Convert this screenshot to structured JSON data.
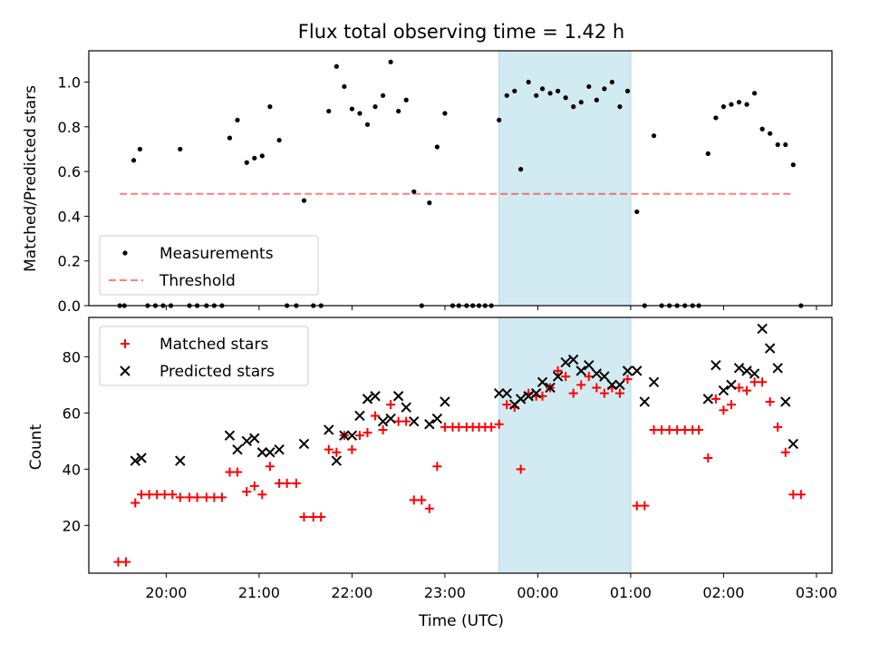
{
  "chart_data": [
    {
      "type": "scatter",
      "title": "Flux total observing time = 1.42 h",
      "xlabel": "",
      "ylabel": "Matched/Predicted stars",
      "ylim": [
        0,
        1.14
      ],
      "yticks": [
        "0.0",
        "0.2",
        "0.4",
        "0.6",
        "0.8",
        "1.0"
      ],
      "x_axis": "time",
      "x_range": [
        "19:10",
        "03:10"
      ],
      "highlight": {
        "from": "23:35",
        "to": "01:00",
        "color": "#add8e6"
      },
      "legend_position": "lower left",
      "legend": [
        "Measurements",
        "Threshold"
      ],
      "threshold": {
        "name": "Threshold",
        "value": 0.5,
        "from": "19:30",
        "to": "02:45",
        "color": "#ff0000",
        "style": "dashed"
      },
      "series": [
        {
          "name": "Measurements",
          "color": "#000000",
          "marker": "dot",
          "points": [
            [
              "19:30",
              0.0
            ],
            [
              "19:33",
              0.0
            ],
            [
              "19:39",
              0.65
            ],
            [
              "19:43",
              0.7
            ],
            [
              "19:48",
              0.0
            ],
            [
              "19:53",
              0.0
            ],
            [
              "19:58",
              0.0
            ],
            [
              "20:03",
              0.0
            ],
            [
              "20:09",
              0.7
            ],
            [
              "20:15",
              0.0
            ],
            [
              "20:20",
              0.0
            ],
            [
              "20:26",
              0.0
            ],
            [
              "20:31",
              0.0
            ],
            [
              "20:36",
              0.0
            ],
            [
              "20:41",
              0.75
            ],
            [
              "20:46",
              0.83
            ],
            [
              "20:52",
              0.64
            ],
            [
              "20:57",
              0.66
            ],
            [
              "21:02",
              0.67
            ],
            [
              "21:07",
              0.89
            ],
            [
              "21:13",
              0.74
            ],
            [
              "21:18",
              0.0
            ],
            [
              "21:24",
              0.0
            ],
            [
              "21:29",
              0.47
            ],
            [
              "21:35",
              0.0
            ],
            [
              "21:40",
              0.0
            ],
            [
              "21:45",
              0.87
            ],
            [
              "21:50",
              1.07
            ],
            [
              "21:55",
              0.98
            ],
            [
              "22:00",
              0.88
            ],
            [
              "22:05",
              0.86
            ],
            [
              "22:10",
              0.81
            ],
            [
              "22:15",
              0.89
            ],
            [
              "22:20",
              0.94
            ],
            [
              "22:25",
              1.09
            ],
            [
              "22:30",
              0.87
            ],
            [
              "22:35",
              0.92
            ],
            [
              "22:40",
              0.51
            ],
            [
              "22:45",
              0.0
            ],
            [
              "22:50",
              0.46
            ],
            [
              "22:55",
              0.71
            ],
            [
              "23:00",
              0.86
            ],
            [
              "23:05",
              0.0
            ],
            [
              "23:09",
              0.0
            ],
            [
              "23:14",
              0.0
            ],
            [
              "23:18",
              0.0
            ],
            [
              "23:22",
              0.0
            ],
            [
              "23:26",
              0.0
            ],
            [
              "23:30",
              0.0
            ],
            [
              "23:35",
              0.83
            ],
            [
              "23:40",
              0.94
            ],
            [
              "23:45",
              0.96
            ],
            [
              "23:49",
              0.61
            ],
            [
              "23:54",
              1.0
            ],
            [
              "23:59",
              0.94
            ],
            [
              "00:03",
              0.97
            ],
            [
              "00:08",
              0.95
            ],
            [
              "00:13",
              0.96
            ],
            [
              "00:18",
              0.93
            ],
            [
              "00:23",
              0.89
            ],
            [
              "00:28",
              0.91
            ],
            [
              "00:33",
              0.98
            ],
            [
              "00:38",
              0.92
            ],
            [
              "00:43",
              0.97
            ],
            [
              "00:48",
              1.0
            ],
            [
              "00:53",
              0.89
            ],
            [
              "00:58",
              0.96
            ],
            [
              "01:04",
              0.42
            ],
            [
              "01:09",
              0.0
            ],
            [
              "01:15",
              0.76
            ],
            [
              "01:20",
              0.0
            ],
            [
              "01:25",
              0.0
            ],
            [
              "01:30",
              0.0
            ],
            [
              "01:35",
              0.0
            ],
            [
              "01:40",
              0.0
            ],
            [
              "01:44",
              0.0
            ],
            [
              "01:50",
              0.68
            ],
            [
              "01:55",
              0.84
            ],
            [
              "02:00",
              0.89
            ],
            [
              "02:05",
              0.9
            ],
            [
              "02:10",
              0.91
            ],
            [
              "02:15",
              0.9
            ],
            [
              "02:20",
              0.95
            ],
            [
              "02:25",
              0.79
            ],
            [
              "02:30",
              0.77
            ],
            [
              "02:35",
              0.72
            ],
            [
              "02:40",
              0.72
            ],
            [
              "02:45",
              0.63
            ],
            [
              "02:50",
              0.0
            ]
          ]
        }
      ]
    },
    {
      "type": "scatter",
      "title": "",
      "xlabel": "Time (UTC)",
      "ylabel": "Count",
      "ylim": [
        3,
        94
      ],
      "yticks": [
        "20",
        "40",
        "60",
        "80"
      ],
      "xticks": [
        "20:00",
        "21:00",
        "22:00",
        "23:00",
        "00:00",
        "01:00",
        "02:00",
        "03:00"
      ],
      "x_axis": "time",
      "x_range": [
        "19:10",
        "03:10"
      ],
      "highlight": {
        "from": "23:35",
        "to": "01:00",
        "color": "#add8e6"
      },
      "legend_position": "upper left",
      "legend": [
        "Matched stars",
        "Predicted stars"
      ],
      "series": [
        {
          "name": "Matched stars",
          "color": "#ff0000",
          "marker": "plus",
          "points": [
            [
              "19:29",
              7
            ],
            [
              "19:34",
              7
            ],
            [
              "19:40",
              28
            ],
            [
              "19:44",
              31
            ],
            [
              "19:49",
              31
            ],
            [
              "19:54",
              31
            ],
            [
              "19:59",
              31
            ],
            [
              "20:04",
              31
            ],
            [
              "20:09",
              30
            ],
            [
              "20:15",
              30
            ],
            [
              "20:20",
              30
            ],
            [
              "20:26",
              30
            ],
            [
              "20:31",
              30
            ],
            [
              "20:36",
              30
            ],
            [
              "20:41",
              39
            ],
            [
              "20:46",
              39
            ],
            [
              "20:52",
              32
            ],
            [
              "20:57",
              34
            ],
            [
              "21:02",
              31
            ],
            [
              "21:07",
              41
            ],
            [
              "21:13",
              35
            ],
            [
              "21:18",
              35
            ],
            [
              "21:24",
              35
            ],
            [
              "21:29",
              23
            ],
            [
              "21:35",
              23
            ],
            [
              "21:40",
              23
            ],
            [
              "21:45",
              47
            ],
            [
              "21:50",
              46
            ],
            [
              "21:55",
              52
            ],
            [
              "22:00",
              47
            ],
            [
              "22:05",
              52
            ],
            [
              "22:10",
              53
            ],
            [
              "22:15",
              59
            ],
            [
              "22:20",
              54
            ],
            [
              "22:25",
              63
            ],
            [
              "22:30",
              57
            ],
            [
              "22:35",
              57
            ],
            [
              "22:40",
              29
            ],
            [
              "22:45",
              29
            ],
            [
              "22:50",
              26
            ],
            [
              "22:55",
              41
            ],
            [
              "23:00",
              55
            ],
            [
              "23:05",
              55
            ],
            [
              "23:09",
              55
            ],
            [
              "23:14",
              55
            ],
            [
              "23:18",
              55
            ],
            [
              "23:22",
              55
            ],
            [
              "23:26",
              55
            ],
            [
              "23:30",
              55
            ],
            [
              "23:35",
              56
            ],
            [
              "23:40",
              63
            ],
            [
              "23:45",
              62
            ],
            [
              "23:49",
              40
            ],
            [
              "23:54",
              67
            ],
            [
              "23:59",
              66
            ],
            [
              "00:03",
              66
            ],
            [
              "00:08",
              69
            ],
            [
              "00:13",
              75
            ],
            [
              "00:18",
              73
            ],
            [
              "00:23",
              67
            ],
            [
              "00:28",
              70
            ],
            [
              "00:33",
              73
            ],
            [
              "00:38",
              69
            ],
            [
              "00:43",
              67
            ],
            [
              "00:48",
              69
            ],
            [
              "00:53",
              67
            ],
            [
              "00:58",
              72
            ],
            [
              "01:04",
              27
            ],
            [
              "01:09",
              27
            ],
            [
              "01:15",
              54
            ],
            [
              "01:20",
              54
            ],
            [
              "01:25",
              54
            ],
            [
              "01:30",
              54
            ],
            [
              "01:35",
              54
            ],
            [
              "01:40",
              54
            ],
            [
              "01:44",
              54
            ],
            [
              "01:50",
              44
            ],
            [
              "01:55",
              65
            ],
            [
              "02:00",
              61
            ],
            [
              "02:05",
              63
            ],
            [
              "02:10",
              69
            ],
            [
              "02:15",
              68
            ],
            [
              "02:20",
              71
            ],
            [
              "02:25",
              71
            ],
            [
              "02:30",
              64
            ],
            [
              "02:35",
              55
            ],
            [
              "02:40",
              46
            ],
            [
              "02:45",
              31
            ],
            [
              "02:50",
              31
            ]
          ]
        },
        {
          "name": "Predicted stars",
          "color": "#000000",
          "marker": "x",
          "points": [
            [
              "19:40",
              43
            ],
            [
              "19:44",
              44
            ],
            [
              "20:09",
              43
            ],
            [
              "20:41",
              52
            ],
            [
              "20:46",
              47
            ],
            [
              "20:52",
              50
            ],
            [
              "20:57",
              51
            ],
            [
              "21:02",
              46
            ],
            [
              "21:07",
              46
            ],
            [
              "21:13",
              47
            ],
            [
              "21:29",
              49
            ],
            [
              "21:45",
              54
            ],
            [
              "21:50",
              43
            ],
            [
              "21:55",
              52
            ],
            [
              "22:00",
              52
            ],
            [
              "22:05",
              59
            ],
            [
              "22:10",
              65
            ],
            [
              "22:15",
              66
            ],
            [
              "22:20",
              57
            ],
            [
              "22:25",
              58
            ],
            [
              "22:30",
              66
            ],
            [
              "22:35",
              62
            ],
            [
              "22:40",
              57
            ],
            [
              "22:50",
              56
            ],
            [
              "22:55",
              58
            ],
            [
              "23:00",
              64
            ],
            [
              "23:35",
              67
            ],
            [
              "23:40",
              67
            ],
            [
              "23:45",
              63
            ],
            [
              "23:49",
              65
            ],
            [
              "23:54",
              66
            ],
            [
              "23:59",
              67
            ],
            [
              "00:03",
              71
            ],
            [
              "00:08",
              69
            ],
            [
              "00:13",
              73
            ],
            [
              "00:18",
              78
            ],
            [
              "00:23",
              79
            ],
            [
              "00:28",
              75
            ],
            [
              "00:33",
              77
            ],
            [
              "00:38",
              74
            ],
            [
              "00:43",
              73
            ],
            [
              "00:48",
              70
            ],
            [
              "00:53",
              70
            ],
            [
              "00:58",
              75
            ],
            [
              "01:04",
              75
            ],
            [
              "01:09",
              64
            ],
            [
              "01:15",
              71
            ],
            [
              "01:50",
              65
            ],
            [
              "01:55",
              77
            ],
            [
              "02:00",
              68
            ],
            [
              "02:05",
              70
            ],
            [
              "02:10",
              76
            ],
            [
              "02:15",
              75
            ],
            [
              "02:20",
              74
            ],
            [
              "02:25",
              90
            ],
            [
              "02:30",
              83
            ],
            [
              "02:35",
              76
            ],
            [
              "02:40",
              64
            ],
            [
              "02:45",
              49
            ]
          ]
        }
      ]
    }
  ]
}
